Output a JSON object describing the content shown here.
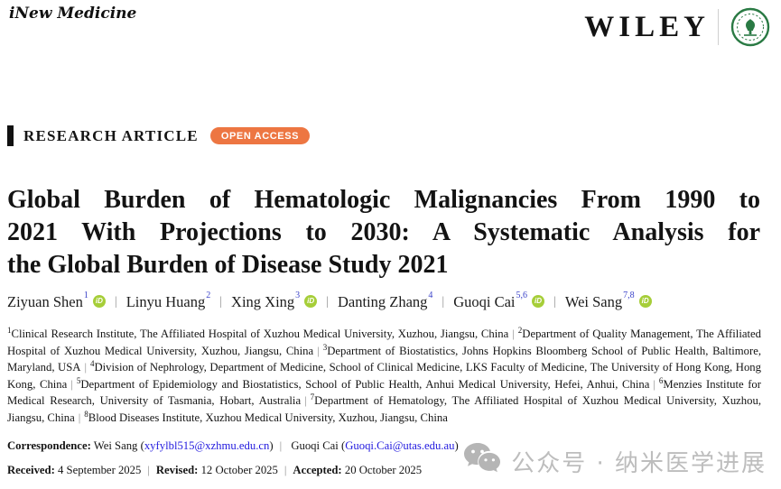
{
  "masthead": {
    "journal": "iNew Medicine",
    "publisher": "WILEY"
  },
  "article": {
    "type": "RESEARCH ARTICLE",
    "open_access_label": "OPEN ACCESS",
    "title_lines": [
      "Global Burden of Hematologic Malignancies From 1990 to",
      "2021 With Projections to 2030: A Systematic Analysis for",
      "the Global Burden of Disease Study 2021"
    ]
  },
  "authors": [
    {
      "name": "Ziyuan Shen",
      "sup": "1",
      "orcid": true
    },
    {
      "name": "Linyu Huang",
      "sup": "2",
      "orcid": false
    },
    {
      "name": "Xing Xing",
      "sup": "3",
      "orcid": true
    },
    {
      "name": "Danting Zhang",
      "sup": "4",
      "orcid": false
    },
    {
      "name": "Guoqi Cai",
      "sup": "5,6",
      "orcid": true
    },
    {
      "name": "Wei Sang",
      "sup": "7,8",
      "orcid": true
    }
  ],
  "affiliations": [
    {
      "sup": "1",
      "text": "Clinical Research Institute, The Affiliated Hospital of Xuzhou Medical University, Xuzhou, Jiangsu, China"
    },
    {
      "sup": "2",
      "text": "Department of Quality Management, The Affiliated Hospital of Xuzhou Medical University, Xuzhou, Jiangsu, China"
    },
    {
      "sup": "3",
      "text": "Department of Biostatistics, Johns Hopkins Bloomberg School of Public Health, Baltimore, Maryland, USA"
    },
    {
      "sup": "4",
      "text": "Division of Nephrology, Department of Medicine, School of Clinical Medicine, LKS Faculty of Medicine, The University of Hong Kong, Hong Kong, China"
    },
    {
      "sup": "5",
      "text": "Department of Epidemiology and Biostatistics, School of Public Health, Anhui Medical University, Hefei, Anhui, China"
    },
    {
      "sup": "6",
      "text": "Menzies Institute for Medical Research, University of Tasmania, Hobart, Australia"
    },
    {
      "sup": "7",
      "text": "Department of Hematology, The Affiliated Hospital of Xuzhou Medical University, Xuzhou, Jiangsu, China"
    },
    {
      "sup": "8",
      "text": "Blood Diseases Institute, Xuzhou Medical University, Xuzhou, Jiangsu, China"
    }
  ],
  "correspondence": {
    "label": "Correspondence:",
    "contacts": [
      {
        "name": "Wei Sang",
        "email": "xyfylbl515@xzhmu.edu.cn"
      },
      {
        "name": "Guoqi Cai",
        "email": "Guoqi.Cai@utas.edu.au"
      }
    ]
  },
  "history": [
    {
      "label": "Received:",
      "value": "4 September 2025"
    },
    {
      "label": "Revised:",
      "value": "12 October 2025"
    },
    {
      "label": "Accepted:",
      "value": "20 October 2025"
    }
  ],
  "watermark": {
    "text": "公众号 · 纳米医学进展"
  },
  "colors": {
    "open_access_bg": "#ED7642",
    "orcid_green": "#A6CE39",
    "link_blue": "#2119DE",
    "superscript_blue": "#3B43C9",
    "seal_green": "#2A7A44",
    "watermark_gray": "#BDBDBD"
  }
}
